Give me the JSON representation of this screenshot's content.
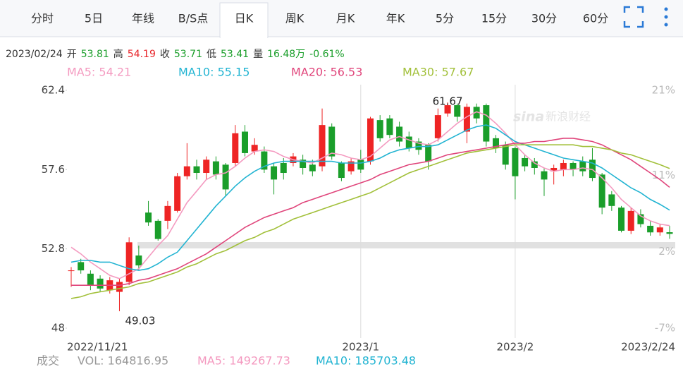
{
  "tabs": {
    "items": [
      "分时",
      "5日",
      "年线",
      "B/S点",
      "日K",
      "周K",
      "月K",
      "年K",
      "5分",
      "15分",
      "30分",
      "60分"
    ],
    "active": 4
  },
  "info": {
    "date": "2023/02/24",
    "items": [
      {
        "label": "开",
        "value": "53.81",
        "color": "#1a9e2a"
      },
      {
        "label": "高",
        "value": "54.19",
        "color": "#e8262b"
      },
      {
        "label": "收",
        "value": "53.71",
        "color": "#1a9e2a"
      },
      {
        "label": "低",
        "value": "53.41",
        "color": "#1a9e2a"
      },
      {
        "label": "量",
        "value": "16.48万",
        "color": "#1a9e2a"
      },
      {
        "label": null,
        "value": "-0.61%",
        "color": "#1a9e2a"
      }
    ]
  },
  "volume_line": [
    {
      "text": "成交",
      "color": "#999999"
    },
    {
      "text": "VOL: 164816.95",
      "color": "#999999"
    },
    {
      "text": "MA5: 149267.73",
      "color": "#f49ac0"
    },
    {
      "text": "MA10: 185703.48",
      "color": "#22b4d2"
    }
  ],
  "watermark": "新浪财经",
  "chart_data": {
    "type": "candlestick",
    "categories": [
      "2022/11/21",
      null,
      null,
      null,
      null,
      null,
      null,
      null,
      null,
      null,
      null,
      null,
      null,
      null,
      null,
      null,
      null,
      null,
      null,
      null,
      null,
      null,
      null,
      null,
      null,
      null,
      null,
      null,
      null,
      null,
      "2023/1",
      null,
      null,
      null,
      null,
      null,
      null,
      null,
      null,
      null,
      null,
      null,
      null,
      null,
      null,
      null,
      "2023/2",
      null,
      null,
      null,
      null,
      null,
      null,
      null,
      null,
      null,
      null,
      null,
      null,
      null,
      null,
      null,
      "2023/2/24"
    ],
    "open": [
      51.5,
      52.0,
      51.3,
      51.0,
      50.3,
      50.2,
      50.8,
      52.4,
      55.0,
      54.5,
      54.5,
      55.1,
      57.2,
      57.8,
      57.4,
      58.1,
      57.9,
      58.0,
      59.9,
      58.7,
      58.7,
      57.8,
      58.0,
      58.0,
      58.2,
      57.9,
      57.8,
      60.2,
      58.0,
      57.5,
      58.2,
      58.1,
      60.6,
      60.7,
      60.2,
      59.6,
      59.3,
      59.1,
      59.5,
      61.0,
      61.5,
      59.9,
      61.4,
      61.5,
      59.5,
      59.1,
      58.9,
      58.3,
      58.1,
      57.5,
      57.5,
      57.6,
      58.0,
      58.1,
      58.2,
      57.3,
      56.1,
      55.3,
      53.9,
      54.9,
      54.2,
      53.8,
      53.81
    ],
    "high": [
      51.7,
      52.2,
      51.5,
      51.2,
      51.1,
      51.0,
      53.5,
      53.0,
      55.7,
      54.6,
      55.7,
      57.4,
      59.2,
      58.2,
      58.4,
      58.4,
      58.0,
      60.3,
      60.3,
      59.5,
      59.0,
      58.0,
      58.3,
      58.6,
      58.5,
      58.2,
      61.3,
      60.4,
      58.1,
      58.3,
      58.8,
      60.8,
      60.9,
      60.9,
      60.5,
      59.9,
      59.5,
      59.2,
      61.3,
      61.67,
      61.6,
      61.6,
      61.6,
      61.6,
      59.7,
      59.3,
      59.0,
      58.5,
      58.3,
      57.7,
      57.9,
      58.2,
      58.1,
      58.4,
      58.9,
      57.4,
      56.3,
      55.4,
      55.3,
      55.2,
      54.5,
      54.3,
      54.19
    ],
    "low": [
      50.5,
      51.3,
      50.3,
      50.2,
      50.1,
      49.03,
      50.6,
      51.5,
      54.2,
      53.3,
      54.0,
      55.0,
      57.0,
      57.0,
      57.0,
      57.0,
      56.0,
      57.8,
      58.4,
      58.5,
      57.4,
      56.1,
      57.0,
      57.8,
      57.3,
      57.2,
      57.5,
      58.2,
      56.9,
      57.3,
      57.4,
      57.9,
      59.3,
      59.5,
      59.0,
      58.7,
      58.5,
      57.6,
      59.3,
      60.8,
      60.5,
      59.2,
      60.4,
      59.0,
      58.6,
      57.6,
      55.8,
      57.5,
      57.3,
      56.0,
      56.7,
      57.2,
      57.2,
      57.2,
      56.9,
      54.9,
      55.1,
      53.8,
      53.7,
      54.1,
      53.6,
      53.6,
      53.41
    ],
    "close": [
      51.5,
      51.5,
      50.6,
      50.4,
      50.9,
      50.8,
      53.2,
      51.8,
      54.4,
      53.4,
      55.4,
      57.2,
      57.8,
      57.4,
      58.2,
      57.3,
      56.4,
      59.8,
      58.6,
      59.1,
      57.6,
      57.0,
      57.4,
      58.4,
      57.7,
      57.5,
      60.3,
      58.4,
      57.1,
      58.1,
      57.6,
      60.7,
      59.5,
      59.7,
      59.3,
      58.9,
      58.8,
      58.1,
      60.9,
      61.5,
      60.8,
      61.4,
      60.7,
      59.3,
      58.9,
      57.9,
      57.2,
      57.8,
      57.7,
      57.0,
      57.7,
      58.0,
      57.6,
      57.5,
      57.1,
      55.3,
      55.4,
      53.9,
      55.1,
      54.3,
      53.8,
      54.1,
      53.71
    ],
    "up_color": "#ee2424",
    "down_color": "#1a9e2a",
    "series": [
      {
        "label": "MA5: 54.21",
        "color": "#f49ac0",
        "values": [
          52.9,
          52.5,
          52.0,
          51.6,
          51.2,
          51.0,
          51.3,
          51.6,
          52.3,
          53.0,
          53.6,
          54.6,
          55.6,
          56.3,
          57.0,
          57.3,
          57.4,
          57.8,
          58.3,
          58.7,
          58.8,
          58.7,
          58.4,
          58.2,
          58.1,
          58.0,
          58.3,
          58.6,
          58.5,
          58.3,
          58.2,
          58.4,
          58.9,
          59.4,
          59.6,
          59.4,
          59.2,
          59.1,
          59.4,
          59.9,
          60.4,
          60.8,
          61.1,
          60.9,
          60.4,
          59.8,
          59.1,
          58.5,
          58.0,
          57.7,
          57.5,
          57.6,
          57.6,
          57.7,
          57.6,
          57.1,
          56.5,
          55.8,
          55.3,
          54.8,
          54.5,
          54.3,
          54.21
        ]
      },
      {
        "label": "MA10: 55.15",
        "color": "#22b4d2",
        "values": [
          52.0,
          52.1,
          52.1,
          52.0,
          52.0,
          51.8,
          51.6,
          51.5,
          51.6,
          51.9,
          52.3,
          52.6,
          53.3,
          54.0,
          54.7,
          55.4,
          56.0,
          56.6,
          57.1,
          57.5,
          57.8,
          58.0,
          58.1,
          58.1,
          58.1,
          58.1,
          58.1,
          58.1,
          58.0,
          58.0,
          58.0,
          58.1,
          58.3,
          58.6,
          58.8,
          58.9,
          59.0,
          59.0,
          59.1,
          59.4,
          59.7,
          60.0,
          60.2,
          60.3,
          60.1,
          59.7,
          59.3,
          59.1,
          58.9,
          58.7,
          58.5,
          58.3,
          58.2,
          58.1,
          58.0,
          57.7,
          57.3,
          56.9,
          56.5,
          56.2,
          55.8,
          55.5,
          55.15
        ]
      },
      {
        "label": "MA20: 56.53",
        "color": "#e0457b",
        "values": [
          50.6,
          50.6,
          50.6,
          50.6,
          50.6,
          50.6,
          50.7,
          50.9,
          51.0,
          51.2,
          51.4,
          51.6,
          51.9,
          52.2,
          52.5,
          52.9,
          53.3,
          53.7,
          54.1,
          54.4,
          54.7,
          54.9,
          55.1,
          55.3,
          55.6,
          55.8,
          56.0,
          56.2,
          56.4,
          56.6,
          56.8,
          57.0,
          57.3,
          57.5,
          57.7,
          57.9,
          58.0,
          58.1,
          58.3,
          58.5,
          58.6,
          58.7,
          58.8,
          58.9,
          59.0,
          59.1,
          59.2,
          59.2,
          59.3,
          59.3,
          59.4,
          59.5,
          59.5,
          59.4,
          59.3,
          59.1,
          58.8,
          58.5,
          58.2,
          57.8,
          57.4,
          57.0,
          56.53
        ]
      },
      {
        "label": "MA30: 57.67",
        "color": "#a2c03a",
        "values": [
          49.8,
          49.9,
          50.1,
          50.2,
          50.3,
          50.4,
          50.5,
          50.7,
          50.8,
          51.0,
          51.2,
          51.4,
          51.7,
          51.9,
          52.2,
          52.5,
          52.7,
          53.0,
          53.3,
          53.5,
          53.8,
          54.0,
          54.3,
          54.6,
          54.8,
          55.0,
          55.2,
          55.4,
          55.6,
          55.8,
          56.0,
          56.2,
          56.5,
          56.8,
          57.1,
          57.4,
          57.6,
          57.8,
          58.0,
          58.2,
          58.4,
          58.6,
          58.7,
          58.8,
          58.9,
          59.0,
          59.1,
          59.1,
          59.1,
          59.1,
          59.1,
          59.1,
          59.1,
          59.0,
          59.0,
          58.9,
          58.8,
          58.6,
          58.5,
          58.3,
          58.1,
          57.9,
          57.67
        ]
      }
    ],
    "ylim": [
      48,
      62.4
    ],
    "yticks": [
      62.4,
      57.6,
      52.8,
      48
    ],
    "y2lim": [
      -7,
      21
    ],
    "y2ticks": [
      {
        "value": 21,
        "label": "21%"
      },
      {
        "value": 11,
        "label": "11%"
      },
      {
        "value": 2,
        "label": "2%"
      },
      {
        "value": -7,
        "label": "-7%"
      }
    ],
    "max_label_index": 39,
    "min_label_index": 5
  }
}
